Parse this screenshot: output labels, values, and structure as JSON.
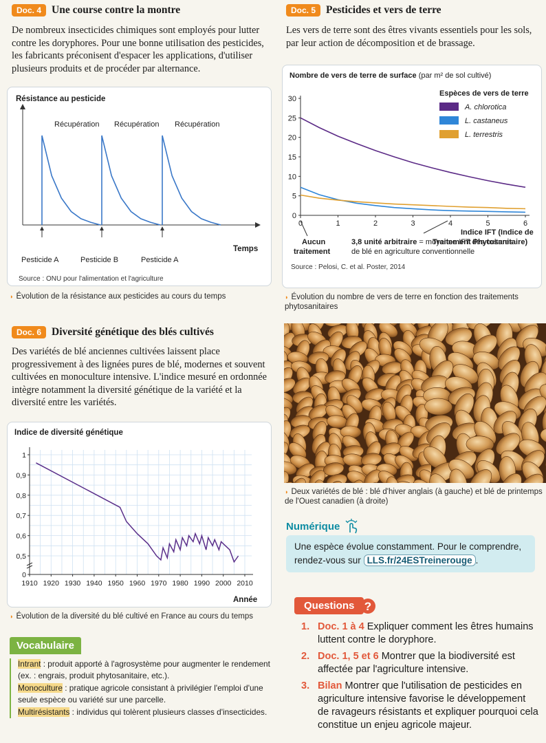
{
  "doc4": {
    "badge": "Doc. 4",
    "title": "Une course contre la montre",
    "text": "De nombreux insecticides chimiques sont employés pour lutter contre les doryphores. Pour une bonne utilisation des pesticides, les fabricants préconisent d'espacer les applications, d'utiliser plusieurs produits et de procéder par alternance.",
    "source": "Source : ONU pour l'alimentation et l'agriculture",
    "caption": "Évolution de la résistance aux pesticides au cours du temps"
  },
  "doc5": {
    "badge": "Doc. 5",
    "title": "Pesticides et vers de terre",
    "text": "Les vers de terre sont des êtres vivants essentiels pour les sols, par leur action de décomposition et de brassage.",
    "source": "Source : Pelosi, C. et al. Poster, 2014",
    "caption": "Évolution du nombre de vers de terre en fonction des traitements phytosanitaires"
  },
  "doc6": {
    "badge": "Doc. 6",
    "title": "Diversité génétique des blés cultivés",
    "text": "Des variétés de blé anciennes cultivées laissent place progressivement à des lignées pures de blé, modernes et souvent cultivées en monoculture intensive. L'indice mesuré en ordonnée intègre notamment la diversité génétique de la variété et la diversité entre les variétés.",
    "caption": "Évolution de la diversité du blé cultivé en France au cours du temps"
  },
  "photo": {
    "caption": "Deux variétés de blé : blé d'hiver anglais (à gauche) et blé de printemps de l'Ouest canadien (à droite)"
  },
  "numerique": {
    "title": "Numérique",
    "text": "Une espèce évolue constamment. Pour le comprendre, rendez-vous sur",
    "link": "LLS.fr/24ESTreinerouge",
    "after": "."
  },
  "questions": {
    "title": "Questions",
    "items": [
      {
        "num": "1.",
        "ref": "Doc. 1 à 4",
        "text": "Expliquer comment les êtres humains luttent contre le doryphore."
      },
      {
        "num": "2.",
        "ref": "Doc. 1, 5 et 6",
        "text": "Montrer que la biodiversité est affectée par l'agriculture intensive."
      },
      {
        "num": "3.",
        "ref": "Bilan",
        "text": "Montrer que l'utilisation de pesticides en agriculture intensive favorise le développement de ravageurs résistants et expliquer pourquoi cela constitue un enjeu agricole majeur."
      }
    ]
  },
  "vocab": {
    "title": "Vocabulaire",
    "entries": [
      {
        "term": "Intrant",
        "def": " : produit apporté à l'agrosystème pour augmenter le rendement (ex. : engrais, produit phytosanitaire, etc.)."
      },
      {
        "term": "Monoculture",
        "def": " : pratique agricole consistant à privilégier l'emploi d'une seule espèce ou variété sur une parcelle."
      },
      {
        "term": "Multirésistants",
        "def": " : individus qui tolèrent plusieurs classes d'insecticides."
      }
    ]
  },
  "colors": {
    "accent_orange": "#f08a1c",
    "curve_blue": "#3a78c8",
    "chlorotica": "#5b2a86",
    "castaneus": "#2f86d8",
    "terrestris": "#e0a030",
    "diversity_line": "#5a2f8a",
    "questions_red": "#e2583a",
    "vocab_green": "#7cb342"
  },
  "chart_data": [
    {
      "type": "line",
      "title": "",
      "ylabel": "Résistance au pesticide",
      "xlabel": "Temps",
      "annotations": [
        "Récupération",
        "Récupération",
        "Récupération"
      ],
      "treatments": [
        "Pesticide A",
        "Pesticide B",
        "Pesticide A"
      ],
      "series": [
        {
          "values": [
            1.0,
            0.55,
            0.3,
            0.15,
            0.07,
            0.03,
            0.0
          ]
        }
      ]
    },
    {
      "type": "line",
      "ylabel": "Nombre de vers de terre de surface (par m² de sol cultivé)",
      "xlabel": "Indice IFT (Indice de Traitement Phytosanitaire)",
      "ylim": [
        0,
        30
      ],
      "xlim": [
        0,
        6
      ],
      "y_ticks": [
        0,
        5,
        10,
        15,
        20,
        25,
        30
      ],
      "x_ticks": [
        0,
        1,
        2,
        3,
        4,
        5,
        6
      ],
      "legend_title": "Espèces de vers de terre",
      "legend_position": "top-right",
      "x0_note": "Aucun traitement",
      "ref_note": "3,8 unité arbitraire = moyenne IFT des cultures de blé en agriculture conventionnelle",
      "ref_x": 3.8,
      "x": [
        0,
        0.5,
        1,
        1.5,
        2,
        2.5,
        3,
        3.5,
        4,
        4.5,
        5,
        5.5,
        6
      ],
      "series": [
        {
          "name": "A. chlorotica",
          "values": [
            25,
            22.5,
            20.3,
            18.4,
            16.6,
            15.0,
            13.5,
            12.2,
            11.0,
            9.9,
            8.9,
            8.0,
            7.2
          ]
        },
        {
          "name": "L. castaneus",
          "values": [
            7.2,
            5.3,
            4.0,
            3.1,
            2.5,
            2.0,
            1.7,
            1.4,
            1.2,
            1.1,
            1.0,
            0.9,
            0.8
          ]
        },
        {
          "name": "L. terrestris",
          "values": [
            5.2,
            4.4,
            3.9,
            3.5,
            3.2,
            2.9,
            2.7,
            2.5,
            2.3,
            2.1,
            2.0,
            1.8,
            1.7
          ]
        }
      ]
    },
    {
      "type": "line",
      "ylabel": "Indice de diversité génétique",
      "xlabel": "Année",
      "ylim": [
        0,
        1
      ],
      "y_ticks": [
        "0",
        "0,5",
        "0,6",
        "0,7",
        "0,8",
        "0,9",
        "1"
      ],
      "x_ticks": [
        "1910",
        "1920",
        "1930",
        "1940",
        "1950",
        "1960",
        "1970",
        "1980",
        "1990",
        "2000",
        "2010"
      ],
      "x": [
        1913,
        1952,
        1955,
        1960,
        1965,
        1969,
        1971,
        1972,
        1974,
        1975,
        1977,
        1978,
        1980,
        1981,
        1983,
        1984,
        1986,
        1987,
        1989,
        1990,
        1992,
        1993,
        1995,
        1996,
        1998,
        1999,
        2001,
        2003,
        2005,
        2007
      ],
      "values": [
        0.96,
        0.74,
        0.67,
        0.61,
        0.56,
        0.5,
        0.48,
        0.54,
        0.49,
        0.56,
        0.52,
        0.58,
        0.53,
        0.59,
        0.55,
        0.6,
        0.57,
        0.61,
        0.56,
        0.6,
        0.53,
        0.59,
        0.55,
        0.58,
        0.53,
        0.57,
        0.55,
        0.53,
        0.47,
        0.5
      ]
    }
  ]
}
